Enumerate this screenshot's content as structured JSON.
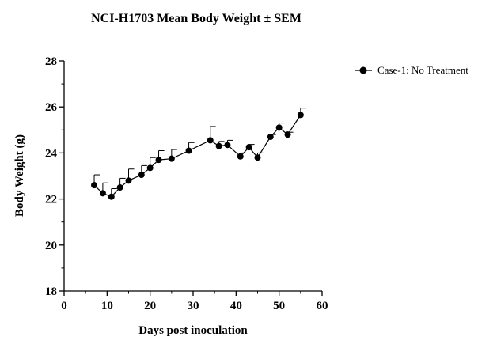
{
  "chart_data": {
    "type": "line",
    "title": "NCI-H1703 Mean Body Weight ± SEM",
    "xlabel": "Days post inoculation",
    "ylabel": "Body Weight (g)",
    "xlim": [
      0,
      60
    ],
    "ylim": [
      18,
      28
    ],
    "xticks": [
      0,
      10,
      20,
      30,
      40,
      50,
      60
    ],
    "yticks": [
      18,
      20,
      22,
      24,
      26,
      28
    ],
    "grid": false,
    "legend_position": "top-right",
    "series": [
      {
        "name": "Case-1: No Treatment",
        "color": "#000000",
        "marker": "circle",
        "x": [
          7,
          9,
          11,
          13,
          15,
          18,
          20,
          22,
          25,
          29,
          34,
          36,
          38,
          41,
          43,
          45,
          48,
          50,
          52,
          55
        ],
        "y": [
          22.6,
          22.25,
          22.1,
          22.5,
          22.8,
          23.05,
          23.35,
          23.7,
          23.75,
          24.1,
          24.55,
          24.3,
          24.35,
          23.85,
          24.25,
          23.8,
          24.7,
          25.1,
          24.8,
          25.65
        ],
        "sem": [
          0.45,
          0.45,
          0.35,
          0.4,
          0.5,
          0.4,
          0.45,
          0.4,
          0.4,
          0.35,
          0.6,
          0.2,
          0.2,
          0.15,
          0.12,
          0.2,
          0.1,
          0.2,
          0.1,
          0.3
        ]
      }
    ]
  }
}
